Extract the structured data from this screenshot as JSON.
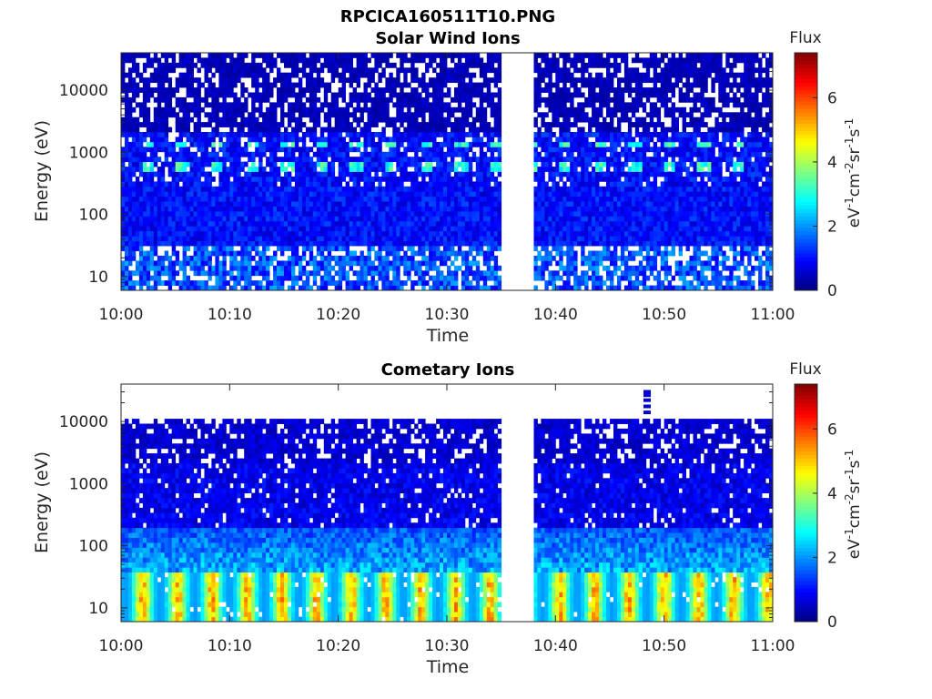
{
  "figure_title": "RPCICA160511T10.PNG",
  "colormap": "jet",
  "chart_data": [
    {
      "type": "heatmap",
      "title": "Solar Wind Ions",
      "xlabel": "Time",
      "ylabel": "Energy (eV)",
      "x_ticks": [
        "10:00",
        "10:10",
        "10:20",
        "10:30",
        "10:40",
        "10:50",
        "11:00"
      ],
      "xlim": [
        "10:00",
        "11:00"
      ],
      "y_scale": "log",
      "y_ticks": [
        "10",
        "100",
        "1000",
        "10000"
      ],
      "ylim": [
        6,
        40000
      ],
      "data_gap": [
        "10:35",
        "10:38"
      ],
      "colorbar": {
        "label": "Flux",
        "unit_label": "eV-1cm-2sr-1s-1",
        "ticks": [
          "0",
          "2",
          "4",
          "6"
        ],
        "range": [
          0,
          7.4
        ]
      },
      "bands": [
        {
          "energy_range": [
            6,
            30
          ],
          "flux_typical": 1.5
        },
        {
          "energy_range": [
            30,
            300
          ],
          "flux_typical": 1.0
        },
        {
          "energy_range": [
            300,
            2000
          ],
          "flux_typical": 1.0,
          "enhancements_at_energy": [
            600,
            1300
          ],
          "flux_peak": 3.5
        },
        {
          "energy_range": [
            2000,
            40000
          ],
          "flux_typical": 0.5
        }
      ]
    },
    {
      "type": "heatmap",
      "title": "Cometary Ions",
      "xlabel": "Time",
      "ylabel": "Energy (eV)",
      "x_ticks": [
        "10:00",
        "10:10",
        "10:20",
        "10:30",
        "10:40",
        "10:50",
        "11:00"
      ],
      "xlim": [
        "10:00",
        "11:00"
      ],
      "y_scale": "log",
      "y_ticks": [
        "10",
        "100",
        "1000",
        "10000"
      ],
      "ylim": [
        6,
        40000
      ],
      "data_gap": [
        "10:35",
        "10:38"
      ],
      "colorbar": {
        "label": "Flux",
        "unit_label": "eV-1cm-2sr-1s-1",
        "ticks": [
          "0",
          "2",
          "4",
          "6"
        ],
        "range": [
          0,
          7.4
        ]
      },
      "bands": [
        {
          "energy_range": [
            6,
            35
          ],
          "flux_typical": 3.0,
          "flux_peak": 5.5
        },
        {
          "energy_range": [
            35,
            200
          ],
          "flux_typical": 1.6
        },
        {
          "energy_range": [
            200,
            11000
          ],
          "flux_typical": 0.8
        }
      ]
    }
  ]
}
